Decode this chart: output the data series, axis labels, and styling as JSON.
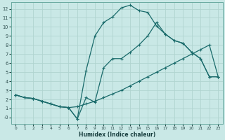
{
  "xlabel": "Humidex (Indice chaleur)",
  "bg_color": "#c9e8e6",
  "grid_color": "#b0d4d0",
  "line_color": "#1a6b6b",
  "xlim": [
    -0.5,
    23.5
  ],
  "ylim": [
    -0.7,
    12.7
  ],
  "xticks": [
    0,
    1,
    2,
    3,
    4,
    5,
    6,
    7,
    8,
    9,
    10,
    11,
    12,
    13,
    14,
    15,
    16,
    17,
    18,
    19,
    20,
    21,
    22,
    23
  ],
  "yticks": [
    0,
    1,
    2,
    3,
    4,
    5,
    6,
    7,
    8,
    9,
    10,
    11,
    12
  ],
  "ytick_labels": [
    "-0",
    "1",
    "2",
    "3",
    "4",
    "5",
    "6",
    "7",
    "8",
    "9",
    "10",
    "11",
    "12"
  ],
  "line_upper_x": [
    0,
    1,
    2,
    3,
    4,
    5,
    6,
    7,
    8,
    9,
    10,
    11,
    12,
    13,
    14,
    15,
    16,
    17,
    18,
    19,
    20,
    21,
    22,
    23
  ],
  "line_upper_y": [
    2.5,
    2.2,
    2.1,
    1.8,
    1.5,
    1.2,
    1.1,
    -0.15,
    5.2,
    9.0,
    10.5,
    11.1,
    12.1,
    12.4,
    11.8,
    11.6,
    10.1,
    9.2,
    8.5,
    8.2,
    7.2,
    6.5,
    4.5,
    4.5
  ],
  "line_mid_x": [
    0,
    1,
    2,
    3,
    4,
    5,
    6,
    7,
    8,
    9,
    10,
    11,
    12,
    13,
    14,
    15,
    16,
    17,
    18,
    19,
    20,
    21,
    22,
    23
  ],
  "line_mid_y": [
    2.5,
    2.2,
    2.1,
    1.8,
    1.5,
    1.2,
    1.1,
    -0.15,
    2.2,
    1.7,
    5.5,
    6.5,
    6.5,
    7.2,
    8.0,
    9.0,
    10.5,
    9.2,
    8.5,
    8.2,
    7.2,
    6.5,
    4.5,
    4.5
  ],
  "line_lower_x": [
    0,
    1,
    2,
    3,
    4,
    5,
    6,
    7,
    8,
    9,
    10,
    11,
    12,
    13,
    14,
    15,
    16,
    17,
    18,
    19,
    20,
    21,
    22,
    23
  ],
  "line_lower_y": [
    2.5,
    2.2,
    2.1,
    1.8,
    1.5,
    1.2,
    1.1,
    1.2,
    1.5,
    1.8,
    2.2,
    2.6,
    3.0,
    3.5,
    4.0,
    4.5,
    5.0,
    5.5,
    6.0,
    6.5,
    7.0,
    7.5,
    8.0,
    4.5
  ]
}
